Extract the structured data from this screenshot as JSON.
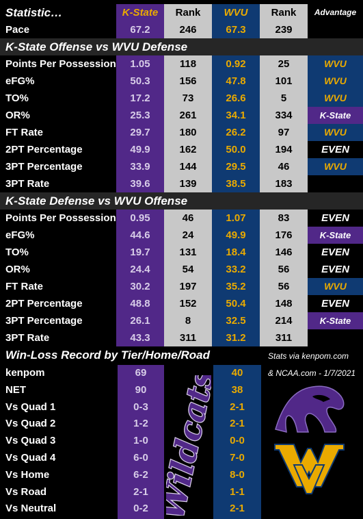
{
  "header": {
    "statistic": "Statistic…",
    "kstate": "K-State",
    "rank1": "Rank",
    "wvu": "WVU",
    "rank2": "Rank",
    "advantage": "Advantage"
  },
  "pace": {
    "label": "Pace",
    "ks": "67.2",
    "ks_rank": "246",
    "wv": "67.3",
    "wv_rank": "239"
  },
  "section1": {
    "title": "K-State Offense vs WVU Defense",
    "rows": [
      {
        "label": "Points Per Possession",
        "ks": "1.05",
        "ks_rank": "118",
        "wv": "0.92",
        "wv_rank": "25",
        "adv": "WVU",
        "adv_team": "w"
      },
      {
        "label": "eFG%",
        "ks": "50.3",
        "ks_rank": "156",
        "wv": "47.8",
        "wv_rank": "101",
        "adv": "WVU",
        "adv_team": "w"
      },
      {
        "label": "TO%",
        "ks": "17.2",
        "ks_rank": "73",
        "wv": "26.6",
        "wv_rank": "5",
        "adv": "WVU",
        "adv_team": "w"
      },
      {
        "label": "OR%",
        "ks": "25.3",
        "ks_rank": "261",
        "wv": "34.1",
        "wv_rank": "334",
        "adv": "K-State",
        "adv_team": "k"
      },
      {
        "label": "FT Rate",
        "ks": "29.7",
        "ks_rank": "180",
        "wv": "26.2",
        "wv_rank": "97",
        "adv": "WVU",
        "adv_team": "w"
      },
      {
        "label": "2PT Percentage",
        "ks": "49.9",
        "ks_rank": "162",
        "wv": "50.0",
        "wv_rank": "194",
        "adv": "EVEN",
        "adv_team": "e"
      },
      {
        "label": "3PT Percentage",
        "ks": "33.9",
        "ks_rank": "144",
        "wv": "29.5",
        "wv_rank": "46",
        "adv": "WVU",
        "adv_team": "w"
      },
      {
        "label": "3PT Rate",
        "ks": "39.6",
        "ks_rank": "139",
        "wv": "38.5",
        "wv_rank": "183",
        "adv": "",
        "adv_team": "none"
      }
    ]
  },
  "section2": {
    "title": "K-State Defense vs WVU Offense",
    "rows": [
      {
        "label": "Points Per Possession",
        "ks": "0.95",
        "ks_rank": "46",
        "wv": "1.07",
        "wv_rank": "83",
        "adv": "EVEN",
        "adv_team": "e"
      },
      {
        "label": "eFG%",
        "ks": "44.6",
        "ks_rank": "24",
        "wv": "49.9",
        "wv_rank": "176",
        "adv": "K-State",
        "adv_team": "k"
      },
      {
        "label": "TO%",
        "ks": "19.7",
        "ks_rank": "131",
        "wv": "18.4",
        "wv_rank": "146",
        "adv": "EVEN",
        "adv_team": "e"
      },
      {
        "label": "OR%",
        "ks": "24.4",
        "ks_rank": "54",
        "wv": "33.2",
        "wv_rank": "56",
        "adv": "EVEN",
        "adv_team": "e"
      },
      {
        "label": "FT Rate",
        "ks": "30.2",
        "ks_rank": "197",
        "wv": "35.2",
        "wv_rank": "56",
        "adv": "WVU",
        "adv_team": "w"
      },
      {
        "label": "2PT Percentage",
        "ks": "48.8",
        "ks_rank": "152",
        "wv": "50.4",
        "wv_rank": "148",
        "adv": "EVEN",
        "adv_team": "e"
      },
      {
        "label": "3PT Percentage",
        "ks": "26.1",
        "ks_rank": "8",
        "wv": "32.5",
        "wv_rank": "214",
        "adv": "K-State",
        "adv_team": "k"
      },
      {
        "label": "3PT Rate",
        "ks": "43.3",
        "ks_rank": "311",
        "wv": "31.2",
        "wv_rank": "311",
        "adv": "",
        "adv_team": "none"
      }
    ]
  },
  "section3": {
    "title": "Win-Loss Record by Tier/Home/Road",
    "credit_line1": "Stats via kenpom.com",
    "credit_line2": "& NCAA.com - 1/7/2021",
    "script_text": "Wildcats",
    "rows": [
      {
        "label": "kenpom",
        "ks": "69",
        "wv": "40"
      },
      {
        "label": "NET",
        "ks": "90",
        "wv": "38"
      },
      {
        "label": "Vs Quad 1",
        "ks": "0-3",
        "wv": "2-1"
      },
      {
        "label": "Vs Quad 2",
        "ks": "1-2",
        "wv": "2-1"
      },
      {
        "label": "Vs Quad 3",
        "ks": "1-0",
        "wv": "0-0"
      },
      {
        "label": "Vs Quad 4",
        "ks": "6-0",
        "wv": "7-0"
      },
      {
        "label": "Vs Home",
        "ks": "6-2",
        "wv": "8-0"
      },
      {
        "label": "Vs Road",
        "ks": "2-1",
        "wv": "1-1"
      },
      {
        "label": "Vs Neutral",
        "ks": "0-2",
        "wv": "2-1"
      }
    ]
  },
  "colors": {
    "kstate_purple": "#512888",
    "wvu_blue": "#0f3a72",
    "wvu_gold": "#eaaa00",
    "rank_gray": "#c8c8c8"
  }
}
